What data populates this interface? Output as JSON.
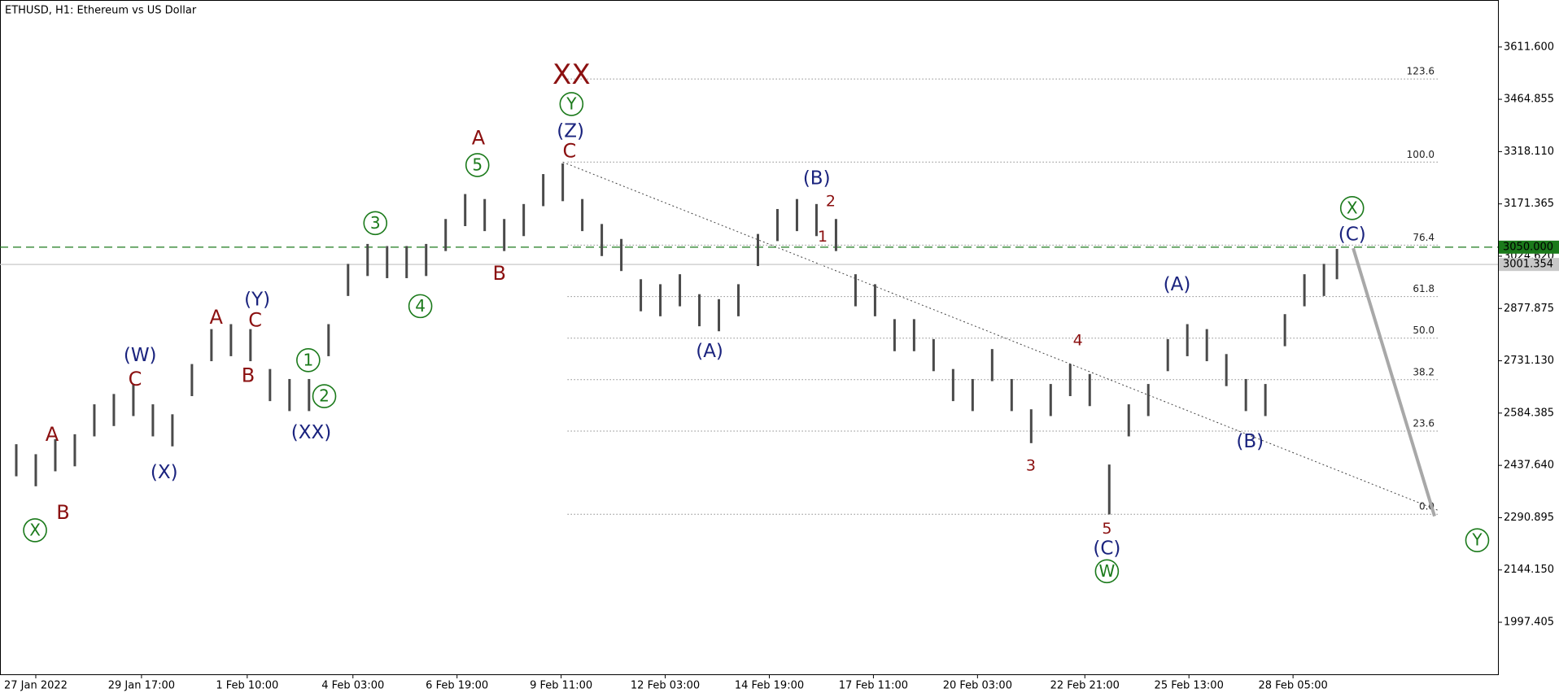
{
  "chart_data": {
    "type": "range",
    "title": "ETHUSD, H1:  Ethereum vs US Dollar",
    "bar_color": "#4a4a4a",
    "x": [
      "2022-01-26 12:00",
      "2022-01-27 00:00",
      "2022-01-27 12:00",
      "2022-01-28 00:00",
      "2022-01-28 12:00",
      "2022-01-29 00:00",
      "2022-01-29 12:00",
      "2022-01-30 00:00",
      "2022-01-30 12:00",
      "2022-01-31 00:00",
      "2022-01-31 12:00",
      "2022-02-01 00:00",
      "2022-02-01 12:00",
      "2022-02-02 00:00",
      "2022-02-02 12:00",
      "2022-02-03 00:00",
      "2022-02-03 12:00",
      "2022-02-04 00:00",
      "2022-02-04 12:00",
      "2022-02-05 00:00",
      "2022-02-05 12:00",
      "2022-02-06 00:00",
      "2022-02-06 12:00",
      "2022-02-07 00:00",
      "2022-02-07 12:00",
      "2022-02-08 00:00",
      "2022-02-08 12:00",
      "2022-02-09 00:00",
      "2022-02-09 12:00",
      "2022-02-10 00:00",
      "2022-02-10 12:00",
      "2022-02-11 00:00",
      "2022-02-11 12:00",
      "2022-02-12 00:00",
      "2022-02-12 12:00",
      "2022-02-13 00:00",
      "2022-02-13 12:00",
      "2022-02-14 00:00",
      "2022-02-14 12:00",
      "2022-02-15 00:00",
      "2022-02-15 12:00",
      "2022-02-16 00:00",
      "2022-02-16 12:00",
      "2022-02-17 00:00",
      "2022-02-17 12:00",
      "2022-02-18 00:00",
      "2022-02-18 12:00",
      "2022-02-19 00:00",
      "2022-02-19 12:00",
      "2022-02-20 00:00",
      "2022-02-20 12:00",
      "2022-02-21 00:00",
      "2022-02-21 12:00",
      "2022-02-22 00:00",
      "2022-02-22 12:00",
      "2022-02-23 00:00",
      "2022-02-23 12:00",
      "2022-02-24 00:00",
      "2022-02-24 12:00",
      "2022-02-25 00:00",
      "2022-02-25 12:00",
      "2022-02-26 00:00",
      "2022-02-26 12:00",
      "2022-02-27 00:00",
      "2022-02-27 12:00",
      "2022-02-28 00:00",
      "2022-02-28 12:00",
      "2022-03-01 00:00",
      "2022-03-01 08:00"
    ],
    "high": [
      2497,
      2469,
      2511,
      2525,
      2609,
      2638,
      2666,
      2609,
      2581,
      2722,
      2820,
      2834,
      2820,
      2708,
      2680,
      2680,
      2834,
      3003,
      3059,
      3053,
      3053,
      3059,
      3129,
      3199,
      3185,
      3129,
      3171,
      3255,
      3285,
      3185,
      3115,
      3073,
      2960,
      2946,
      2974,
      2918,
      2904,
      2946,
      3087,
      3157,
      3185,
      3171,
      3129,
      2974,
      2946,
      2848,
      2848,
      2792,
      2708,
      2680,
      2764,
      2680,
      2595,
      2666,
      2722,
      2694,
      2440,
      2609,
      2666,
      2792,
      2834,
      2820,
      2750,
      2680,
      2666,
      2862,
      2974,
      3003,
      3045
    ],
    "low": [
      2407,
      2379,
      2421,
      2435,
      2519,
      2548,
      2576,
      2519,
      2491,
      2632,
      2730,
      2744,
      2730,
      2618,
      2590,
      2590,
      2744,
      2913,
      2969,
      2963,
      2963,
      2969,
      3039,
      3109,
      3095,
      3039,
      3081,
      3165,
      3179,
      3095,
      3025,
      2983,
      2870,
      2856,
      2884,
      2828,
      2814,
      2856,
      2997,
      3067,
      3095,
      3081,
      3039,
      2884,
      2856,
      2758,
      2758,
      2702,
      2618,
      2590,
      2674,
      2590,
      2500,
      2576,
      2632,
      2604,
      2300,
      2519,
      2576,
      2702,
      2744,
      2730,
      2660,
      2590,
      2576,
      2772,
      2884,
      2913,
      2960
    ],
    "xlim": [
      "2022-01-26 02:00",
      "2022-03-05 11:00"
    ],
    "xticks": [
      {
        "value": "2022-01-27 00:00",
        "label": "27 Jan 2022"
      },
      {
        "value": "2022-01-29 17:00",
        "label": "29 Jan 17:00"
      },
      {
        "value": "2022-02-01 10:00",
        "label": "1 Feb 10:00"
      },
      {
        "value": "2022-02-04 03:00",
        "label": "4 Feb 03:00"
      },
      {
        "value": "2022-02-06 19:00",
        "label": "6 Feb 19:00"
      },
      {
        "value": "2022-02-09 11:00",
        "label": "9 Feb 11:00"
      },
      {
        "value": "2022-02-12 03:00",
        "label": "12 Feb 03:00"
      },
      {
        "value": "2022-02-14 19:00",
        "label": "14 Feb 19:00"
      },
      {
        "value": "2022-02-17 11:00",
        "label": "17 Feb 11:00"
      },
      {
        "value": "2022-02-20 03:00",
        "label": "20 Feb 03:00"
      },
      {
        "value": "2022-02-22 21:00",
        "label": "22 Feb 21:00"
      },
      {
        "value": "2022-02-25 13:00",
        "label": "25 Feb 13:00"
      },
      {
        "value": "2022-02-28 05:00",
        "label": "28 Feb 05:00"
      }
    ],
    "ylim": [
      1851.4,
      3743.5
    ],
    "yticks": [
      {
        "value": 1997.405,
        "label": "1997.405"
      },
      {
        "value": 2144.15,
        "label": "2144.150"
      },
      {
        "value": 2290.895,
        "label": "2290.895"
      },
      {
        "value": 2437.64,
        "label": "2437.640"
      },
      {
        "value": 2584.385,
        "label": "2584.385"
      },
      {
        "value": 2731.13,
        "label": "2731.130"
      },
      {
        "value": 2877.875,
        "label": "2877.875"
      },
      {
        "value": 3024.62,
        "label": "3024.620"
      },
      {
        "value": 3171.365,
        "label": "3171.365"
      },
      {
        "value": 3318.11,
        "label": "3318.110"
      },
      {
        "value": 3464.855,
        "label": "3464.855"
      },
      {
        "value": 3611.6,
        "label": "3611.600"
      }
    ],
    "price_lines": [
      {
        "value": 3001.354,
        "label": "3001.354",
        "color": "#c8c8c8",
        "style": "solid"
      },
      {
        "value": 3050,
        "label": "3050.000",
        "color": "#1b7a1b",
        "style": "dashed"
      }
    ],
    "fibonacci": {
      "low": 2300.6,
      "high": 3288.7,
      "from": "2022-02-09 15:00",
      "to": "2022-03-03 22:00",
      "levels": [
        123.6,
        {
          "value": 100,
          "label": "100.0"
        },
        76.4,
        61.8,
        {
          "value": 50,
          "label": "50.0"
        },
        38.2,
        23.6,
        {
          "value": 0,
          "label": "0.0"
        }
      ]
    },
    "trendline": {
      "x": [
        "2022-02-09 12:00",
        "2022-03-03 22:00"
      ],
      "values": [
        3288.7,
        2311.8
      ]
    },
    "forecast": {
      "x": [
        "2022-03-01 18:00",
        "2022-03-03 20:00"
      ],
      "values": [
        3047,
        2295
      ],
      "color": "#a8a8a8"
    },
    "annotation_colors": {
      "red": "#8b1010",
      "blue": "#1a237e",
      "circle": "#1b7a1b"
    },
    "annotations": [
      {
        "text": "X",
        "style": "circle"
      },
      {
        "text": "B",
        "style": "red"
      },
      {
        "text": "A",
        "style": "red"
      },
      {
        "text": "(X)",
        "style": "blue"
      },
      {
        "text": "C",
        "style": "red"
      },
      {
        "text": "(W)",
        "style": "blue"
      },
      {
        "text": "A",
        "style": "red"
      },
      {
        "text": "B",
        "style": "red"
      },
      {
        "text": "C",
        "style": "red"
      },
      {
        "text": "(Y)",
        "style": "blue"
      },
      {
        "text": "(XX)",
        "style": "blue"
      },
      {
        "text": "1",
        "style": "circle"
      },
      {
        "text": "2",
        "style": "circle"
      },
      {
        "text": "3",
        "style": "circle"
      },
      {
        "text": "4",
        "style": "circle"
      },
      {
        "text": "5",
        "style": "circle"
      },
      {
        "text": "A",
        "style": "red"
      },
      {
        "text": "B",
        "style": "red"
      },
      {
        "text": "C",
        "style": "red"
      },
      {
        "text": "(Z)",
        "style": "blue"
      },
      {
        "text": "Y",
        "style": "circle"
      },
      {
        "text": "XX",
        "style": "red-large"
      },
      {
        "text": "(A)",
        "style": "blue"
      },
      {
        "text": "(B)",
        "style": "blue"
      },
      {
        "text": "2",
        "style": "red-small"
      },
      {
        "text": "1",
        "style": "red-small"
      },
      {
        "text": "3",
        "style": "red-small"
      },
      {
        "text": "4",
        "style": "red-small"
      },
      {
        "text": "5",
        "style": "red-small"
      },
      {
        "text": "(C)",
        "style": "blue"
      },
      {
        "text": "W",
        "style": "circle"
      },
      {
        "text": "(A)",
        "style": "blue"
      },
      {
        "text": "(B)",
        "style": "blue"
      },
      {
        "text": "(C)",
        "style": "blue"
      },
      {
        "text": "X",
        "style": "circle"
      },
      {
        "text": "Y",
        "style": "circle"
      }
    ]
  }
}
